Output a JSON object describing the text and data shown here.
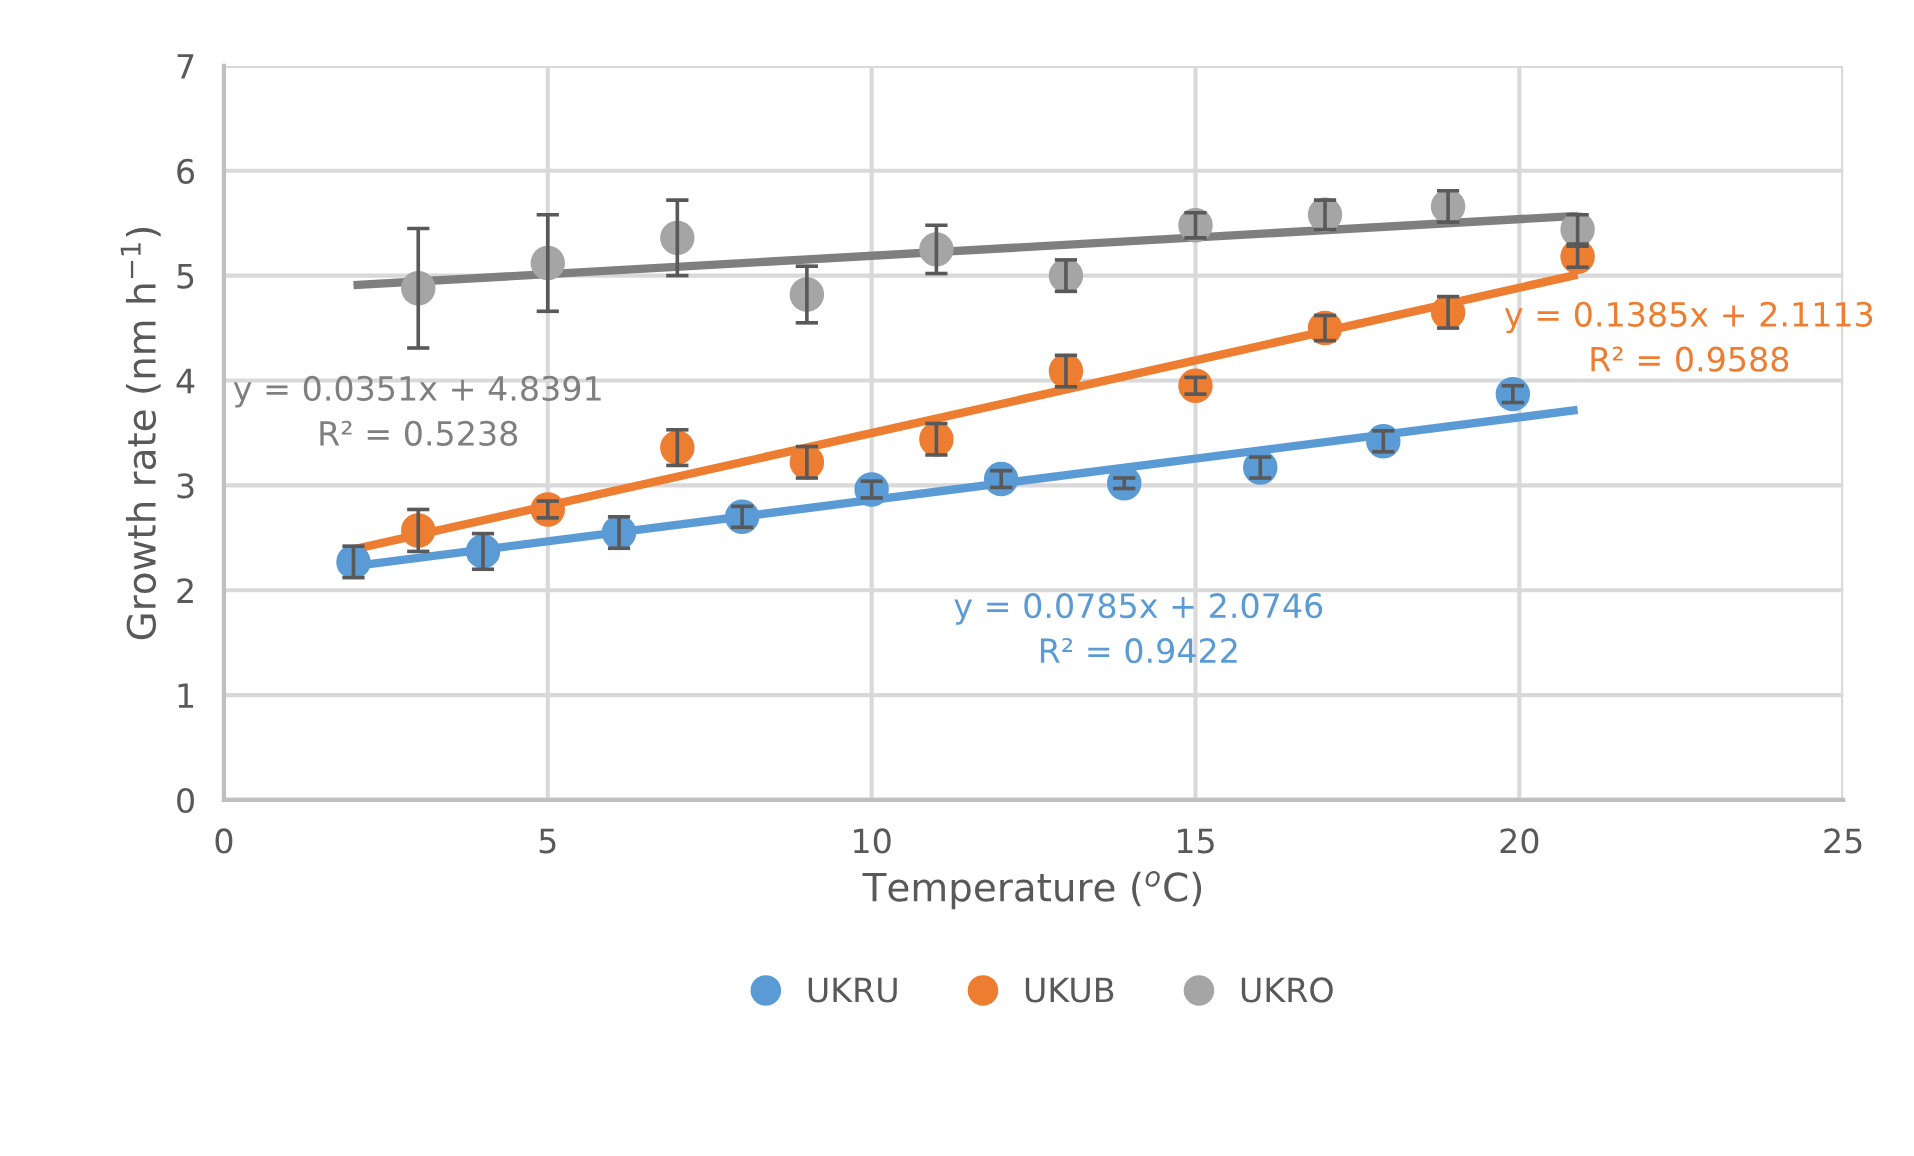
{
  "chart_data": {
    "type": "scatter",
    "xlabel": "Temperature ($^{o}$C)",
    "ylabel": "Growth rate (nm h$^{−1}$)",
    "xlim": [
      0,
      25
    ],
    "xticks": [
      0,
      5,
      10,
      15,
      20,
      25
    ],
    "ylim": [
      0,
      7
    ],
    "yticks": [
      0,
      1,
      2,
      3,
      4,
      5,
      6,
      7
    ],
    "grid": true,
    "legend": "bottom",
    "marker": "circle",
    "series": [
      {
        "name": "UKRU",
        "color": "#5b9bd5",
        "x": [
          2,
          4,
          6.1,
          8,
          10,
          12,
          13.9,
          16,
          17.9,
          19.9
        ],
        "values": [
          2.27,
          2.37,
          2.55,
          2.7,
          2.96,
          3.06,
          3.02,
          3.17,
          3.42,
          3.87
        ],
        "errors": [
          0.15,
          0.17,
          0.15,
          0.1,
          0.08,
          0.08,
          0.05,
          0.1,
          0.1,
          0.08
        ]
      },
      {
        "name": "UKUB",
        "color": "#ed7d31",
        "x": [
          3,
          5,
          7,
          9,
          11,
          13,
          15,
          17,
          18.9,
          20.9
        ],
        "values": [
          2.57,
          2.77,
          3.36,
          3.22,
          3.44,
          4.09,
          3.95,
          4.5,
          4.65,
          5.18
        ],
        "errors": [
          0.2,
          0.08,
          0.17,
          0.15,
          0.15,
          0.15,
          0.08,
          0.12,
          0.15,
          0.1
        ]
      },
      {
        "name": "UKRO",
        "color": "#a5a5a5",
        "x": [
          3,
          5,
          7,
          9,
          11,
          13,
          15,
          17,
          18.9,
          20.9
        ],
        "values": [
          4.88,
          5.12,
          5.36,
          4.82,
          5.25,
          5.0,
          5.48,
          5.58,
          5.66,
          5.44
        ],
        "errors": [
          0.57,
          0.46,
          0.36,
          0.27,
          0.23,
          0.15,
          0.12,
          0.14,
          0.15,
          0.14
        ]
      },
      {
        "type": "line",
        "color": "#5b9bd5",
        "x": [
          2,
          20.9
        ],
        "values": [
          2.23,
          3.72
        ],
        "marker": "none"
      },
      {
        "type": "line",
        "color": "#ed7d31",
        "x": [
          2,
          20.9
        ],
        "values": [
          2.39,
          5.01
        ],
        "marker": "none"
      },
      {
        "type": "line",
        "color": "#7f7f7f",
        "x": [
          2,
          20.9
        ],
        "values": [
          4.91,
          5.57
        ],
        "marker": "none"
      }
    ],
    "annotations": [
      "y = 0.0785x + 2.0746\nR² = 0.9422",
      "y = 0.1385x + 2.1113\nR² = 0.9588",
      "y = 0.0351x + 4.8391\nR² = 0.5238"
    ]
  }
}
